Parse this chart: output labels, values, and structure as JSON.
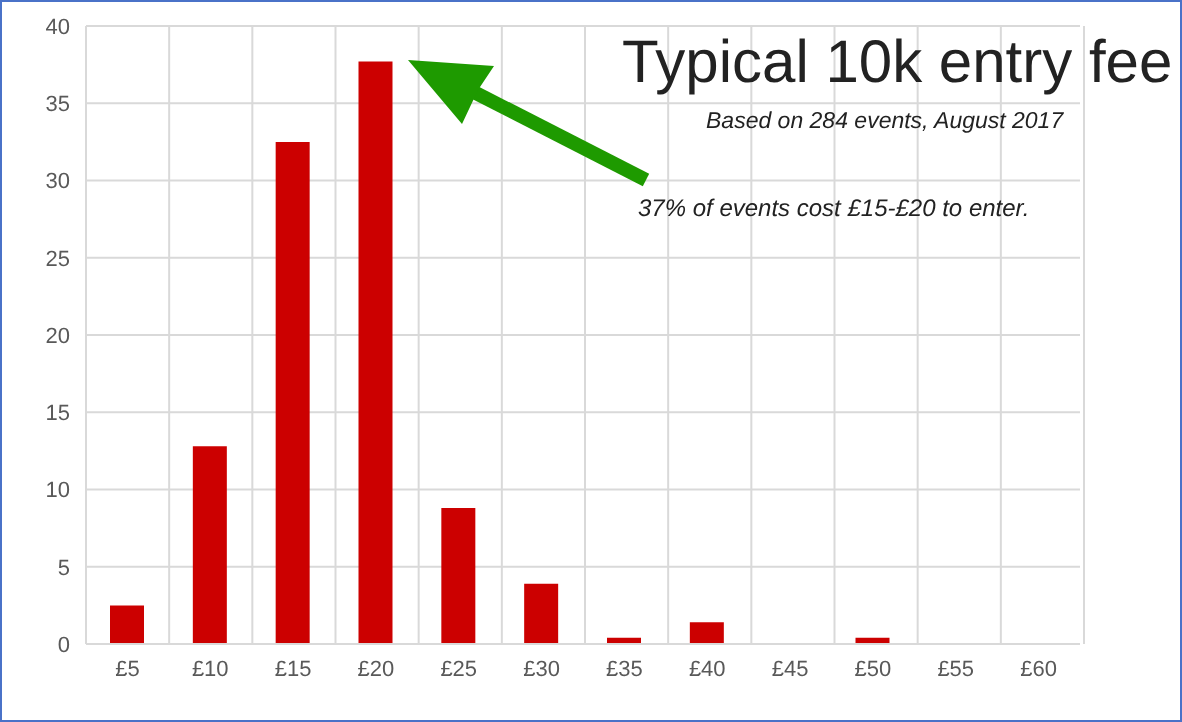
{
  "chart_data": {
    "type": "bar",
    "title": "Typical 10k entry fee",
    "subtitle": "Based on 284 events, August 2017",
    "annotations": [
      "37% of events cost £15-£20 to enter."
    ],
    "categories": [
      "£5",
      "£10",
      "£15",
      "£20",
      "£25",
      "£30",
      "£35",
      "£40",
      "£45",
      "£50",
      "£55",
      "£60"
    ],
    "values": [
      2.5,
      12.8,
      32.5,
      37.7,
      8.8,
      3.9,
      0.4,
      1.4,
      0,
      0.4,
      0,
      0
    ],
    "color": "#cc0000",
    "ylim": [
      0,
      40
    ],
    "yticks": [
      0,
      5,
      10,
      15,
      20,
      25,
      30,
      35,
      40
    ],
    "grid": true
  }
}
